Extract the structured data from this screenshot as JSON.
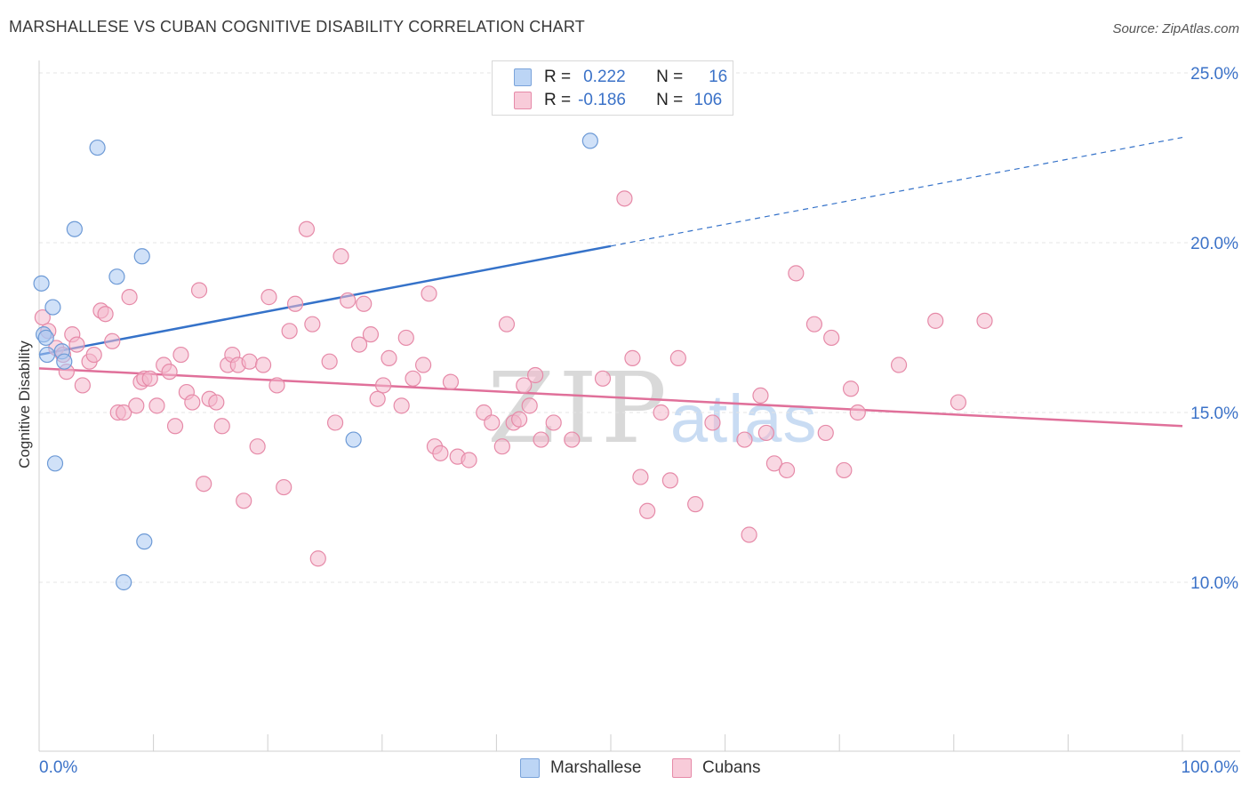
{
  "header": {
    "title": "MARSHALLESE VS CUBAN COGNITIVE DISABILITY CORRELATION CHART",
    "source": "Source: ZipAtlas.com"
  },
  "legend": {
    "rows": [
      {
        "r_label": "R =",
        "r_value": "0.222",
        "n_label": "N =",
        "n_value": "16",
        "color": "#a9c8f2"
      },
      {
        "r_label": "R =",
        "r_value": "-0.186",
        "n_label": "N =",
        "n_value": "106",
        "color": "#f4b8cc"
      }
    ]
  },
  "bottom_legend": [
    "Marshallese",
    "Cubans"
  ],
  "watermark": {
    "zip": "ZIP",
    "atlas": "atlas"
  },
  "chart_data": {
    "type": "scatter",
    "title": "MARSHALLESE VS CUBAN COGNITIVE DISABILITY CORRELATION CHART",
    "xlabel": "",
    "ylabel": "Cognitive Disability",
    "xlim": [
      0,
      100
    ],
    "ylim": [
      5,
      26
    ],
    "x_tick_labels": [
      "0.0%",
      "100.0%"
    ],
    "y_ticks": [
      10,
      15,
      20,
      25
    ],
    "y_tick_labels": [
      "10.0%",
      "15.0%",
      "20.0%",
      "25.0%"
    ],
    "grid": true,
    "series": [
      {
        "name": "Marshallese",
        "color": "#a9c8f2",
        "stroke": "#6d9ad6",
        "trend": {
          "x0": 0,
          "y0": 16.7,
          "x1": 50,
          "y1": 19.9,
          "dashed_to_x": 100,
          "dashed_to_y": 23.1,
          "color": "#3572c9"
        },
        "points": [
          [
            0.2,
            18.8
          ],
          [
            0.4,
            17.3
          ],
          [
            0.7,
            16.7
          ],
          [
            1.2,
            18.1
          ],
          [
            1.4,
            13.5
          ],
          [
            2.0,
            16.8
          ],
          [
            2.2,
            16.5
          ],
          [
            3.1,
            20.4
          ],
          [
            5.1,
            22.8
          ],
          [
            6.8,
            19.0
          ],
          [
            7.4,
            10.0
          ],
          [
            9.0,
            19.6
          ],
          [
            9.2,
            11.2
          ],
          [
            27.5,
            14.2
          ],
          [
            48.2,
            23.0
          ],
          [
            0.6,
            17.2
          ]
        ]
      },
      {
        "name": "Cubans",
        "color": "#f4b8cc",
        "stroke": "#e68aa8",
        "trend": {
          "x0": 0,
          "y0": 16.3,
          "x1": 100,
          "y1": 14.6,
          "color": "#e0709a"
        },
        "points": [
          [
            0.3,
            17.8
          ],
          [
            0.8,
            17.4
          ],
          [
            1.5,
            16.9
          ],
          [
            2.1,
            16.7
          ],
          [
            2.4,
            16.2
          ],
          [
            2.9,
            17.3
          ],
          [
            3.3,
            17.0
          ],
          [
            3.8,
            15.8
          ],
          [
            4.4,
            16.5
          ],
          [
            4.8,
            16.7
          ],
          [
            5.4,
            18.0
          ],
          [
            5.8,
            17.9
          ],
          [
            6.4,
            17.1
          ],
          [
            6.9,
            15.0
          ],
          [
            7.4,
            15.0
          ],
          [
            7.9,
            18.4
          ],
          [
            8.5,
            15.2
          ],
          [
            8.9,
            15.9
          ],
          [
            9.2,
            16.0
          ],
          [
            9.7,
            16.0
          ],
          [
            10.3,
            15.2
          ],
          [
            10.9,
            16.4
          ],
          [
            11.4,
            16.2
          ],
          [
            11.9,
            14.6
          ],
          [
            12.4,
            16.7
          ],
          [
            12.9,
            15.6
          ],
          [
            13.4,
            15.3
          ],
          [
            14.0,
            18.6
          ],
          [
            14.4,
            12.9
          ],
          [
            14.9,
            15.4
          ],
          [
            15.5,
            15.3
          ],
          [
            16.0,
            14.6
          ],
          [
            16.5,
            16.4
          ],
          [
            16.9,
            16.7
          ],
          [
            17.4,
            16.4
          ],
          [
            17.9,
            12.4
          ],
          [
            18.4,
            16.5
          ],
          [
            19.1,
            14.0
          ],
          [
            19.6,
            16.4
          ],
          [
            20.1,
            18.4
          ],
          [
            20.8,
            15.8
          ],
          [
            21.4,
            12.8
          ],
          [
            21.9,
            17.4
          ],
          [
            22.4,
            18.2
          ],
          [
            23.4,
            20.4
          ],
          [
            23.9,
            17.6
          ],
          [
            24.4,
            10.7
          ],
          [
            25.4,
            16.5
          ],
          [
            25.9,
            14.7
          ],
          [
            26.4,
            19.6
          ],
          [
            27.0,
            18.3
          ],
          [
            28.0,
            17.0
          ],
          [
            28.4,
            18.2
          ],
          [
            29.0,
            17.3
          ],
          [
            29.6,
            15.4
          ],
          [
            30.1,
            15.8
          ],
          [
            30.6,
            16.6
          ],
          [
            31.7,
            15.2
          ],
          [
            32.1,
            17.2
          ],
          [
            32.7,
            16.0
          ],
          [
            33.6,
            16.4
          ],
          [
            34.1,
            18.5
          ],
          [
            34.6,
            14.0
          ],
          [
            35.1,
            13.8
          ],
          [
            36.0,
            15.9
          ],
          [
            36.6,
            13.7
          ],
          [
            37.6,
            13.6
          ],
          [
            38.9,
            15.0
          ],
          [
            39.6,
            14.7
          ],
          [
            40.5,
            14.0
          ],
          [
            40.9,
            17.6
          ],
          [
            41.5,
            14.7
          ],
          [
            42.0,
            14.8
          ],
          [
            42.4,
            15.8
          ],
          [
            42.9,
            15.2
          ],
          [
            43.4,
            16.1
          ],
          [
            43.9,
            14.2
          ],
          [
            45.0,
            14.7
          ],
          [
            46.6,
            14.2
          ],
          [
            49.3,
            16.0
          ],
          [
            51.2,
            21.3
          ],
          [
            51.9,
            16.6
          ],
          [
            52.6,
            13.1
          ],
          [
            53.2,
            12.1
          ],
          [
            54.4,
            15.0
          ],
          [
            55.2,
            13.0
          ],
          [
            55.9,
            16.6
          ],
          [
            57.4,
            12.3
          ],
          [
            58.9,
            14.7
          ],
          [
            61.7,
            14.2
          ],
          [
            62.1,
            11.4
          ],
          [
            63.1,
            15.5
          ],
          [
            63.6,
            14.4
          ],
          [
            64.3,
            13.5
          ],
          [
            65.4,
            13.3
          ],
          [
            66.2,
            19.1
          ],
          [
            67.8,
            17.6
          ],
          [
            68.8,
            14.4
          ],
          [
            69.3,
            17.2
          ],
          [
            70.4,
            13.3
          ],
          [
            71.0,
            15.7
          ],
          [
            71.6,
            15.0
          ],
          [
            75.2,
            16.4
          ],
          [
            78.4,
            17.7
          ],
          [
            80.4,
            15.3
          ],
          [
            82.7,
            17.7
          ]
        ]
      }
    ]
  }
}
